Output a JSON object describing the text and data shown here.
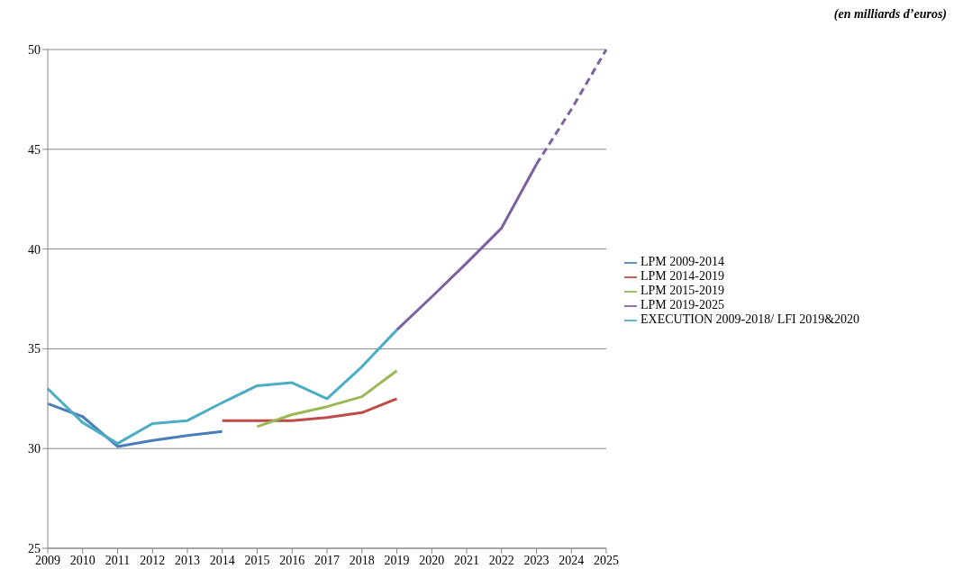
{
  "chart_data": {
    "type": "line",
    "annotations": [
      "(en milliards d’euros)"
    ],
    "categories": [
      "2009",
      "2010",
      "2011",
      "2012",
      "2013",
      "2014",
      "2015",
      "2016",
      "2017",
      "2018",
      "2019",
      "2020",
      "2021",
      "2022",
      "2023",
      "2024",
      "2025"
    ],
    "series": [
      {
        "name": "LPM 2009-2014",
        "color": "#4a7ebb",
        "values": [
          32.25,
          31.6,
          30.1,
          30.4,
          30.65,
          30.85,
          null,
          null,
          null,
          null,
          null,
          null,
          null,
          null,
          null,
          null,
          null
        ]
      },
      {
        "name": "LPM 2014-2019",
        "color": "#be4b48",
        "values": [
          null,
          null,
          null,
          null,
          null,
          31.4,
          31.4,
          31.4,
          31.55,
          31.8,
          32.5,
          null,
          null,
          null,
          null,
          null,
          null
        ]
      },
      {
        "name": "LPM 2015-2019",
        "color": "#98b954",
        "values": [
          null,
          null,
          null,
          null,
          null,
          null,
          31.1,
          31.7,
          32.1,
          32.6,
          33.9,
          null,
          null,
          null,
          null,
          null,
          null
        ]
      },
      {
        "name": "LPM 2019-2025",
        "color": "#7d60a0",
        "values": [
          null,
          null,
          null,
          null,
          null,
          null,
          null,
          null,
          null,
          null,
          35.95,
          37.6,
          39.3,
          41.05,
          44.25,
          null,
          null
        ]
      },
      {
        "color": "#7d60a0",
        "line_style": "dashed",
        "values": [
          null,
          null,
          null,
          null,
          null,
          null,
          null,
          null,
          null,
          null,
          null,
          null,
          null,
          null,
          44.25,
          47.0,
          50.0
        ]
      },
      {
        "name": "EXECUTION 2009-2018/ LFI 2019&2020",
        "color": "#4bacc6",
        "values": [
          33.0,
          31.3,
          30.25,
          31.25,
          31.4,
          32.3,
          33.15,
          33.3,
          32.5,
          34.1,
          35.95,
          null,
          null,
          null,
          null,
          null,
          null
        ]
      }
    ],
    "ylim": [
      25,
      50
    ],
    "yticks": [
      25,
      30,
      35,
      40,
      45,
      50
    ],
    "grid": "y",
    "legend": "right",
    "marker": "none",
    "line_style": "solid"
  }
}
